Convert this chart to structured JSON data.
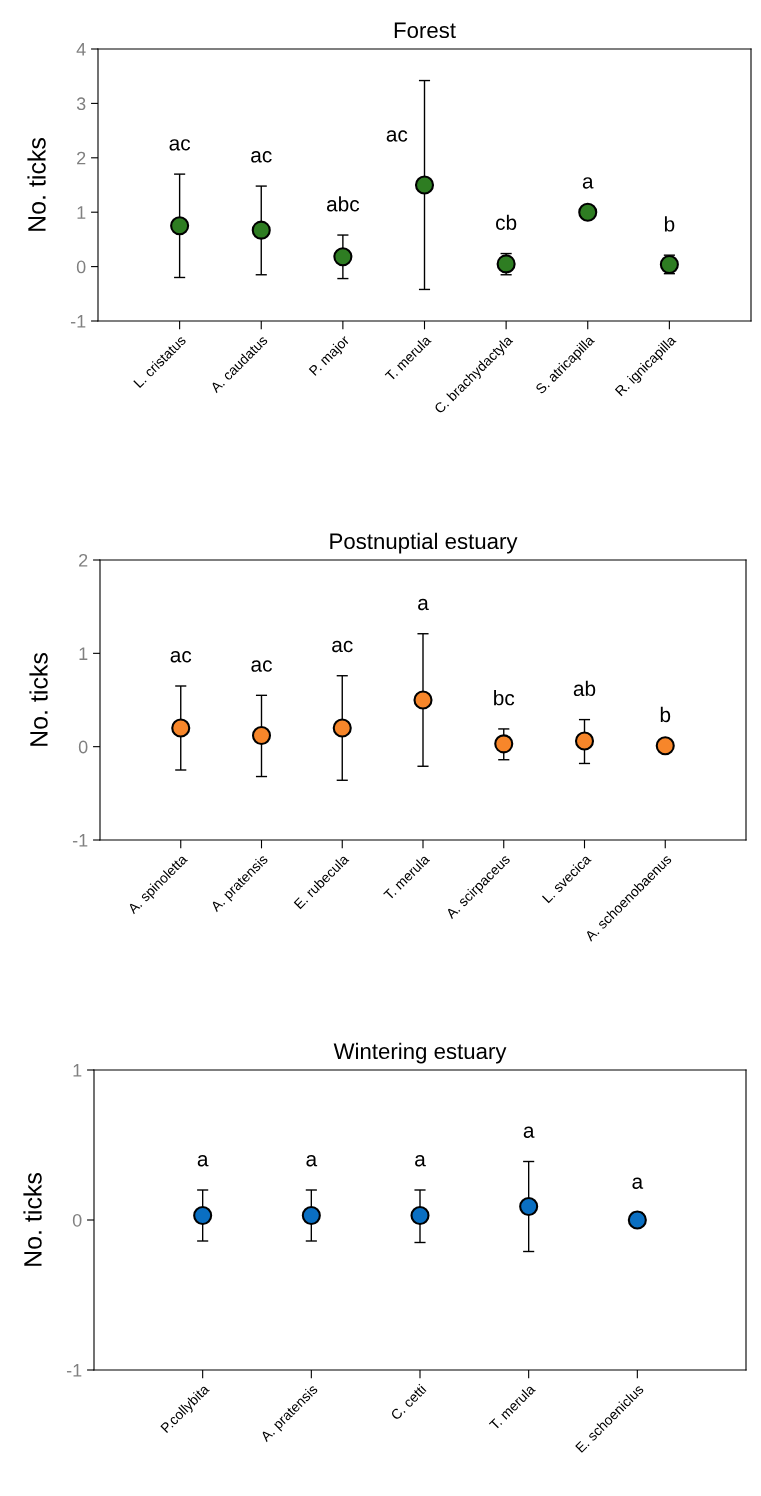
{
  "chart_data": [
    {
      "type": "scatter",
      "title": "Forest",
      "ylabel": "No. ticks",
      "marker": "circle",
      "categories": [
        "L. cristatus",
        "A. caudatus",
        "P. major",
        "T. merula",
        "C. brachydactyla",
        "S. atricapilla",
        "R. ignicapilla"
      ],
      "series": [
        {
          "color": "#2e7d22",
          "values": [
            0.75,
            0.67,
            0.18,
            1.5,
            0.05,
            1.0,
            0.04
          ],
          "errors": [
            [
              -0.2,
              1.7
            ],
            [
              -0.15,
              1.48
            ],
            [
              -0.22,
              0.58
            ],
            [
              -0.42,
              3.42
            ],
            [
              -0.15,
              0.24
            ],
            null,
            [
              -0.13,
              0.21
            ]
          ]
        }
      ],
      "ylim": [
        -1,
        4
      ],
      "yticks": [
        -1,
        0,
        1,
        2,
        3,
        4
      ],
      "annotations": [
        "ac",
        "ac",
        "abc",
        "ac",
        "cb",
        "a",
        "b"
      ]
    },
    {
      "type": "scatter",
      "title": "Postnuptial estuary",
      "ylabel": "No. ticks",
      "marker": "circle",
      "categories": [
        "A. spinoletta",
        "A. pratensis",
        "E. rubecula",
        "T. merula",
        "A. scirpaceus",
        "L. svecica",
        "A. schoenobaenus"
      ],
      "series": [
        {
          "color": "#f7862a",
          "values": [
            0.2,
            0.12,
            0.2,
            0.5,
            0.03,
            0.06,
            0.01
          ],
          "errors": [
            [
              -0.25,
              0.65
            ],
            [
              -0.32,
              0.55
            ],
            [
              -0.36,
              0.76
            ],
            [
              -0.21,
              1.21
            ],
            [
              -0.14,
              0.19
            ],
            [
              -0.18,
              0.29
            ],
            null
          ]
        }
      ],
      "ylim": [
        -1,
        2
      ],
      "yticks": [
        -1,
        0,
        1,
        2
      ],
      "annotations": [
        "ac",
        "ac",
        "ac",
        "a",
        "bc",
        "ab",
        "b"
      ]
    },
    {
      "type": "scatter",
      "title": "Wintering estuary",
      "ylabel": "No. ticks",
      "marker": "circle",
      "categories": [
        "P.collybita",
        "A. pratensis",
        "C. cetti",
        "T. merula",
        "E. schoeniclus"
      ],
      "series": [
        {
          "color": "#0a6fc2",
          "values": [
            0.03,
            0.03,
            0.03,
            0.09,
            0.0
          ],
          "errors": [
            [
              -0.14,
              0.2
            ],
            [
              -0.14,
              0.2
            ],
            [
              -0.15,
              0.2
            ],
            [
              -0.21,
              0.39
            ],
            [
              -0.03,
              0.05
            ]
          ]
        }
      ],
      "ylim": [
        -1,
        1
      ],
      "yticks": [
        -1,
        0,
        1
      ],
      "annotations": [
        "a",
        "a",
        "a",
        "a",
        "a"
      ]
    }
  ]
}
